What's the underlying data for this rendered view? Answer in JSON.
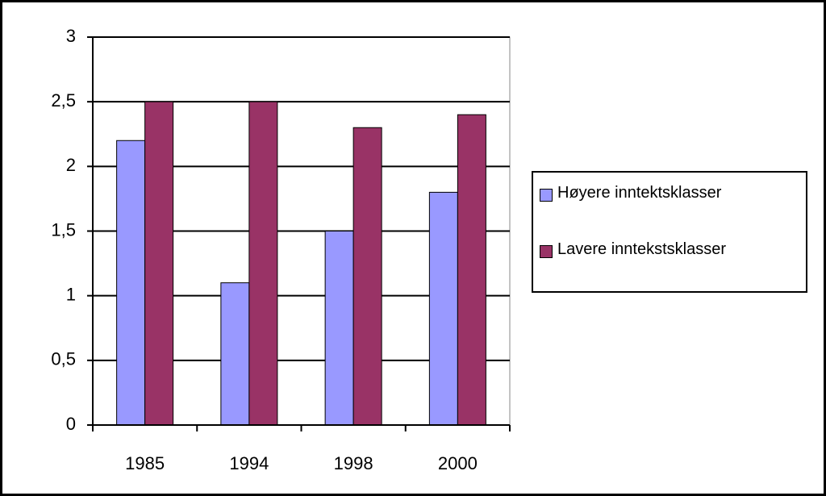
{
  "chart_data": {
    "type": "bar",
    "categories": [
      "1985",
      "1994",
      "1998",
      "2000"
    ],
    "series": [
      {
        "name": "Høyere inntektsklasser",
        "color": "#9999ff",
        "values": [
          2.2,
          1.1,
          1.5,
          1.8
        ]
      },
      {
        "name": "Lavere inntekstsklasser",
        "color": "#993366",
        "values": [
          2.5,
          2.5,
          2.3,
          2.4
        ]
      }
    ],
    "ylim": [
      0,
      3
    ],
    "yticks": [
      0,
      {
        "value": 0.5,
        "label": "0,5"
      },
      1,
      {
        "value": 1.5,
        "label": "1,5"
      },
      2,
      {
        "value": 2.5,
        "label": "2,5"
      },
      3
    ],
    "grid": true,
    "legend": "right"
  }
}
